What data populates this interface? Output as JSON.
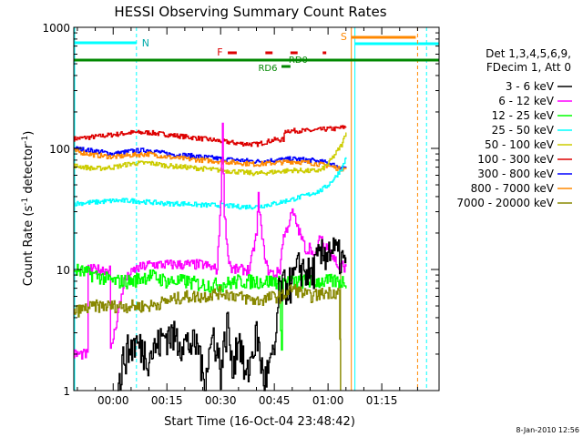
{
  "chart_data": {
    "type": "line",
    "title": "HESSI Observing Summary Count Rates",
    "xlabel": "Start Time (16-Oct-04 23:48:42)",
    "ylabel": "Count Rate (s",
    "ylabel_sup1": "-1",
    "ylabel_mid": " detector",
    "ylabel_sup2": "-1",
    "ylabel_end": ")",
    "y_scale": "log",
    "ylim": [
      1,
      1000
    ],
    "xlim_min": [
      -11,
      91
    ],
    "x_ticks": [
      {
        "v": 0,
        "label": "00:00"
      },
      {
        "v": 15,
        "label": "00:15"
      },
      {
        "v": 30,
        "label": "00:30"
      },
      {
        "v": 45,
        "label": "00:45"
      },
      {
        "v": 60,
        "label": "01:00"
      },
      {
        "v": 75,
        "label": "01:15"
      }
    ],
    "y_ticks": [
      {
        "v": 1,
        "label": "1"
      },
      {
        "v": 10,
        "label": "10"
      },
      {
        "v": 100,
        "label": "100"
      },
      {
        "v": 1000,
        "label": "1000"
      }
    ],
    "legend": {
      "position": "right",
      "header1": "Det 1,3,4,5,6,9,",
      "header2": "FDecim 1, Att 0",
      "entries": [
        {
          "label": "3 - 6 keV",
          "color": "#000000"
        },
        {
          "label": "6 - 12 keV",
          "color": "#ff00ff"
        },
        {
          "label": "12 - 25 keV",
          "color": "#00ff00"
        },
        {
          "label": "25 - 50 keV",
          "color": "#00ffff"
        },
        {
          "label": "50 - 100 keV",
          "color": "#cccc00"
        },
        {
          "label": "100 - 300 keV",
          "color": "#dd0000"
        },
        {
          "label": "300 - 800 keV",
          "color": "#0000ff"
        },
        {
          "label": "800 - 7000 keV",
          "color": "#ff8800"
        },
        {
          "label": "7000 - 20000 keV",
          "color": "#888800"
        }
      ]
    },
    "flag_labels": {
      "night": "N",
      "saa": "S",
      "flare": "F",
      "rd0": "RD0",
      "rd6": "RD6"
    },
    "series": [
      {
        "name": "100 - 300 keV",
        "color": "#dd0000",
        "x": [
          -11,
          -5,
          0,
          5,
          10,
          15,
          20,
          25,
          30,
          35,
          40,
          45,
          47.5,
          48,
          50,
          55,
          60,
          62,
          64.5,
          65
        ],
        "y": [
          120,
          125,
          130,
          135,
          135,
          130,
          125,
          120,
          115,
          110,
          108,
          118,
          118,
          140,
          140,
          140,
          145,
          145,
          150,
          150
        ]
      },
      {
        "name": "300 - 800 keV",
        "color": "#0000ff",
        "x": [
          -11,
          -5,
          0,
          5,
          10,
          15,
          20,
          25,
          30,
          35,
          40,
          45,
          50,
          55,
          60,
          63,
          65
        ],
        "y": [
          100,
          95,
          90,
          95,
          97,
          90,
          88,
          85,
          82,
          80,
          78,
          80,
          82,
          80,
          76,
          70,
          70
        ]
      },
      {
        "name": "800 - 7000 keV",
        "color": "#ff8800",
        "x": [
          -11,
          -5,
          0,
          5,
          10,
          15,
          20,
          25,
          30,
          35,
          40,
          45,
          50,
          55,
          60,
          63,
          65
        ],
        "y": [
          95,
          88,
          85,
          88,
          90,
          85,
          82,
          80,
          78,
          76,
          74,
          76,
          78,
          76,
          72,
          68,
          68
        ]
      },
      {
        "name": "50 - 100 keV",
        "color": "#cccc00",
        "x": [
          -11,
          -5,
          0,
          5,
          10,
          15,
          20,
          25,
          30,
          35,
          40,
          45,
          50,
          55,
          58,
          60,
          62,
          64,
          65
        ],
        "y": [
          72,
          68,
          70,
          75,
          76,
          72,
          70,
          68,
          66,
          64,
          62,
          64,
          66,
          65,
          66,
          75,
          90,
          110,
          140
        ]
      },
      {
        "name": "25 - 50 keV",
        "color": "#00ffff",
        "x": [
          -11,
          -5,
          0,
          5,
          10,
          15,
          20,
          25,
          30,
          35,
          40,
          45,
          50,
          55,
          58,
          60,
          62,
          64,
          65
        ],
        "y": [
          35,
          36,
          37,
          37,
          36,
          35,
          35,
          34,
          34,
          33,
          33,
          35,
          38,
          42,
          45,
          50,
          58,
          70,
          85
        ]
      },
      {
        "name": "6 - 12 keV",
        "color": "#ff00ff",
        "x": [
          -11,
          -7.2,
          -7.1,
          -1,
          -0.9,
          3,
          6,
          10,
          15,
          20,
          25,
          29,
          30,
          30.5,
          31,
          32,
          33,
          35,
          38,
          40,
          40.5,
          41.5,
          43,
          45,
          46.5,
          47.3,
          48,
          50,
          52,
          54,
          55,
          56,
          57,
          58,
          59,
          60,
          61,
          62,
          63,
          64,
          65
        ],
        "y": [
          2,
          2,
          10,
          10,
          2,
          8,
          10,
          11,
          11,
          11,
          11,
          10,
          40,
          150,
          30,
          13,
          10,
          10,
          10,
          20,
          40,
          18,
          10,
          9,
          10,
          18,
          20,
          30,
          20,
          14,
          16,
          12,
          15,
          20,
          14,
          17,
          13,
          12,
          10,
          11,
          10
        ]
      },
      {
        "name": "12 - 25 keV",
        "color": "#00ff00",
        "x": [
          -11,
          -5,
          0,
          5,
          10,
          15,
          20,
          25,
          30,
          35,
          40,
          45,
          46.3,
          46.5,
          47,
          47.3,
          50,
          55,
          60,
          65
        ],
        "y": [
          10,
          9,
          8,
          8,
          9,
          8,
          8,
          7.5,
          7.5,
          8,
          8,
          8,
          8,
          5,
          2.5,
          8,
          8,
          8,
          8,
          8
        ]
      },
      {
        "name": "3 - 6 keV",
        "color": "#000000",
        "x": [
          1.2,
          3,
          6,
          10,
          15,
          20,
          24,
          25,
          28,
          30,
          32,
          33,
          35,
          37,
          40,
          42,
          45,
          46.3,
          50,
          52,
          55,
          57,
          60,
          62,
          64,
          65
        ],
        "y": [
          1,
          2,
          2.5,
          2,
          3,
          2.5,
          2.3,
          1.2,
          3,
          1.5,
          4,
          1.5,
          3,
          1.2,
          3,
          1.2,
          2,
          7,
          8,
          11,
          9,
          12,
          15,
          14,
          12,
          10
        ]
      },
      {
        "name": "7000 - 20000 keV",
        "color": "#888800",
        "x": [
          -11,
          -5,
          0,
          5,
          10,
          15,
          20,
          25,
          30,
          35,
          40,
          45,
          47,
          50,
          55,
          60,
          63,
          63.5
        ],
        "y": [
          4.5,
          5,
          5,
          5,
          5,
          5.5,
          6,
          6,
          6.5,
          6,
          5.5,
          6,
          6,
          7,
          6,
          6.5,
          6.5,
          1
        ]
      }
    ]
  },
  "footer_date": "8-Jan-2010 12:56"
}
